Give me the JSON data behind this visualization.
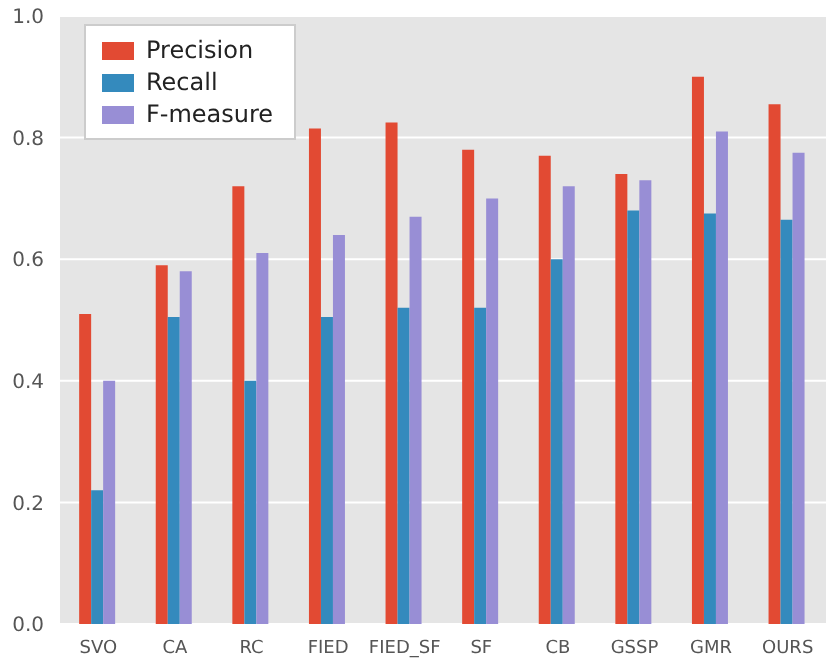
{
  "chart_data": {
    "type": "bar",
    "categories": [
      "SVO",
      "CA",
      "RC",
      "FIED",
      "FIED_SF",
      "SF",
      "CB",
      "GSSP",
      "GMR",
      "OURS"
    ],
    "series": [
      {
        "name": "Precision",
        "color": "#e24a33",
        "values": [
          0.51,
          0.59,
          0.72,
          0.815,
          0.825,
          0.78,
          0.77,
          0.74,
          0.9,
          0.855
        ]
      },
      {
        "name": "Recall",
        "color": "#348abd",
        "values": [
          0.22,
          0.505,
          0.4,
          0.505,
          0.52,
          0.52,
          0.6,
          0.68,
          0.675,
          0.665
        ]
      },
      {
        "name": "F-measure",
        "color": "#988ed5",
        "values": [
          0.4,
          0.58,
          0.61,
          0.64,
          0.67,
          0.7,
          0.72,
          0.73,
          0.81,
          0.775
        ]
      }
    ],
    "ylim": [
      0,
      1
    ],
    "yticks": [
      {
        "value": 0,
        "label": "0.0"
      },
      0.2,
      0.4,
      0.6,
      0.8,
      {
        "value": 1,
        "label": "1.0"
      }
    ],
    "grid": "y",
    "legend": "top left"
  }
}
